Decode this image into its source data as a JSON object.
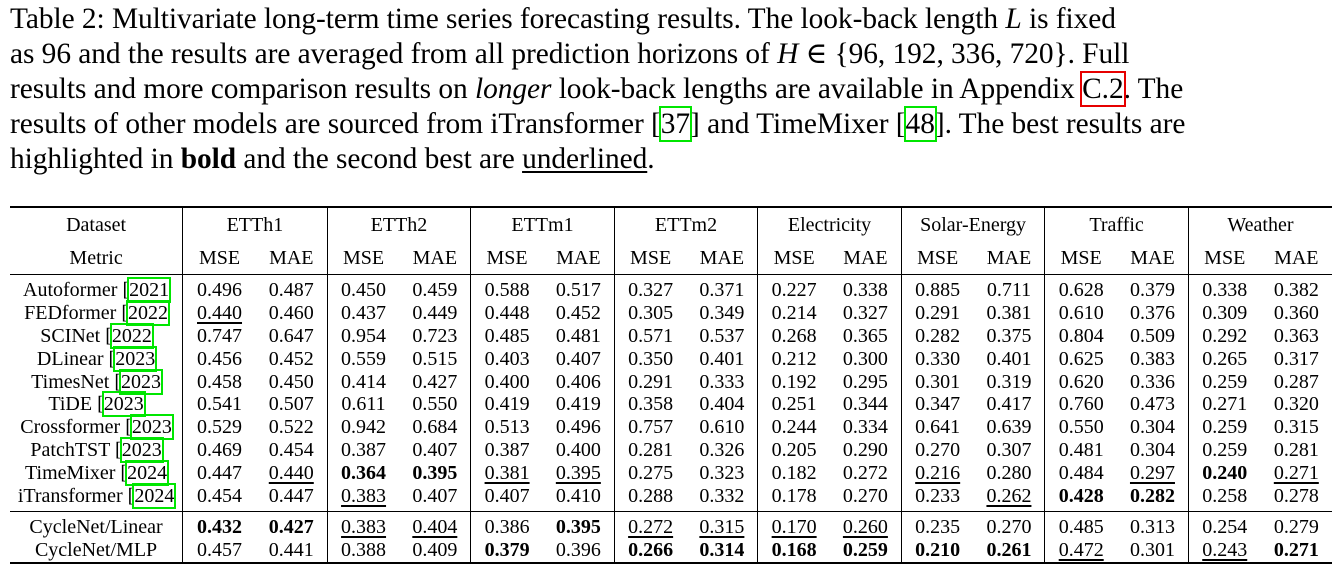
{
  "caption": {
    "l1a": "Table 2: Multivariate long-term time series forecasting results.  The look-back length ",
    "l1b": "L",
    "l1c": " is fixed",
    "l2a": "as 96 and the results are averaged from all prediction horizons of ",
    "l2b": "H",
    "l2c": " ∈ {96, 192, 336, 720}.  Full",
    "l3a": "results and more comparison results on ",
    "l3b": "longer",
    "l3c": " look-back lengths are available in Appendix ",
    "l3d": "C.2",
    "l3e": ". The",
    "l4a": "results of other models are sourced from iTransformer [",
    "l4b": "37",
    "l4c": "] and TimeMixer [",
    "l4d": "48",
    "l4e": "]. The best results are",
    "l5a": "highlighted in ",
    "l5b": "bold",
    "l5c": " and the second best are ",
    "l5d": "underlined",
    "l5e": "."
  },
  "table": {
    "dataset_label": "Dataset",
    "metric_label": "Metric",
    "datasets": [
      "ETTh1",
      "ETTh2",
      "ETTm1",
      "ETTm2",
      "Electricity",
      "Solar-Energy",
      "Traffic",
      "Weather"
    ],
    "metrics": [
      "MSE",
      "MAE"
    ],
    "rows": [
      {
        "name": "Autoformer",
        "year": "2021",
        "v": [
          "0.496",
          "0.487",
          "0.450",
          "0.459",
          "0.588",
          "0.517",
          "0.327",
          "0.371",
          "0.227",
          "0.338",
          "0.885",
          "0.711",
          "0.628",
          "0.379",
          "0.338",
          "0.382"
        ],
        "bold": [],
        "under": []
      },
      {
        "name": "FEDformer",
        "year": "2022",
        "v": [
          "0.440",
          "0.460",
          "0.437",
          "0.449",
          "0.448",
          "0.452",
          "0.305",
          "0.349",
          "0.214",
          "0.327",
          "0.291",
          "0.381",
          "0.610",
          "0.376",
          "0.309",
          "0.360"
        ],
        "bold": [],
        "under": [
          0
        ]
      },
      {
        "name": "SCINet",
        "year": "2022",
        "v": [
          "0.747",
          "0.647",
          "0.954",
          "0.723",
          "0.485",
          "0.481",
          "0.571",
          "0.537",
          "0.268",
          "0.365",
          "0.282",
          "0.375",
          "0.804",
          "0.509",
          "0.292",
          "0.363"
        ],
        "bold": [],
        "under": []
      },
      {
        "name": "DLinear",
        "year": "2023",
        "v": [
          "0.456",
          "0.452",
          "0.559",
          "0.515",
          "0.403",
          "0.407",
          "0.350",
          "0.401",
          "0.212",
          "0.300",
          "0.330",
          "0.401",
          "0.625",
          "0.383",
          "0.265",
          "0.317"
        ],
        "bold": [],
        "under": []
      },
      {
        "name": "TimesNet",
        "year": "2023",
        "v": [
          "0.458",
          "0.450",
          "0.414",
          "0.427",
          "0.400",
          "0.406",
          "0.291",
          "0.333",
          "0.192",
          "0.295",
          "0.301",
          "0.319",
          "0.620",
          "0.336",
          "0.259",
          "0.287"
        ],
        "bold": [],
        "under": []
      },
      {
        "name": "TiDE",
        "year": "2023",
        "v": [
          "0.541",
          "0.507",
          "0.611",
          "0.550",
          "0.419",
          "0.419",
          "0.358",
          "0.404",
          "0.251",
          "0.344",
          "0.347",
          "0.417",
          "0.760",
          "0.473",
          "0.271",
          "0.320"
        ],
        "bold": [],
        "under": []
      },
      {
        "name": "Crossformer",
        "year": "2023",
        "v": [
          "0.529",
          "0.522",
          "0.942",
          "0.684",
          "0.513",
          "0.496",
          "0.757",
          "0.610",
          "0.244",
          "0.334",
          "0.641",
          "0.639",
          "0.550",
          "0.304",
          "0.259",
          "0.315"
        ],
        "bold": [],
        "under": []
      },
      {
        "name": "PatchTST",
        "year": "2023",
        "v": [
          "0.469",
          "0.454",
          "0.387",
          "0.407",
          "0.387",
          "0.400",
          "0.281",
          "0.326",
          "0.205",
          "0.290",
          "0.270",
          "0.307",
          "0.481",
          "0.304",
          "0.259",
          "0.281"
        ],
        "bold": [],
        "under": []
      },
      {
        "name": "TimeMixer",
        "year": "2024",
        "v": [
          "0.447",
          "0.440",
          "0.364",
          "0.395",
          "0.381",
          "0.395",
          "0.275",
          "0.323",
          "0.182",
          "0.272",
          "0.216",
          "0.280",
          "0.484",
          "0.297",
          "0.240",
          "0.271"
        ],
        "bold": [
          2,
          3,
          14
        ],
        "under": [
          1,
          4,
          5,
          10,
          13,
          15
        ]
      },
      {
        "name": "iTransformer",
        "year": "2024",
        "v": [
          "0.454",
          "0.447",
          "0.383",
          "0.407",
          "0.407",
          "0.410",
          "0.288",
          "0.332",
          "0.178",
          "0.270",
          "0.233",
          "0.262",
          "0.428",
          "0.282",
          "0.258",
          "0.278"
        ],
        "bold": [
          12,
          13
        ],
        "under": [
          2,
          11
        ]
      }
    ],
    "ours": [
      {
        "name": "CycleNet/Linear",
        "v": [
          "0.432",
          "0.427",
          "0.383",
          "0.404",
          "0.386",
          "0.395",
          "0.272",
          "0.315",
          "0.170",
          "0.260",
          "0.235",
          "0.270",
          "0.485",
          "0.313",
          "0.254",
          "0.279"
        ],
        "bold": [
          0,
          1,
          5
        ],
        "under": [
          2,
          3,
          6,
          7,
          8,
          9
        ]
      },
      {
        "name": "CycleNet/MLP",
        "v": [
          "0.457",
          "0.441",
          "0.388",
          "0.409",
          "0.379",
          "0.396",
          "0.266",
          "0.314",
          "0.168",
          "0.259",
          "0.210",
          "0.261",
          "0.472",
          "0.301",
          "0.243",
          "0.271"
        ],
        "bold": [
          4,
          6,
          7,
          8,
          9,
          10,
          11,
          15
        ],
        "under": [
          12,
          14
        ]
      }
    ]
  }
}
